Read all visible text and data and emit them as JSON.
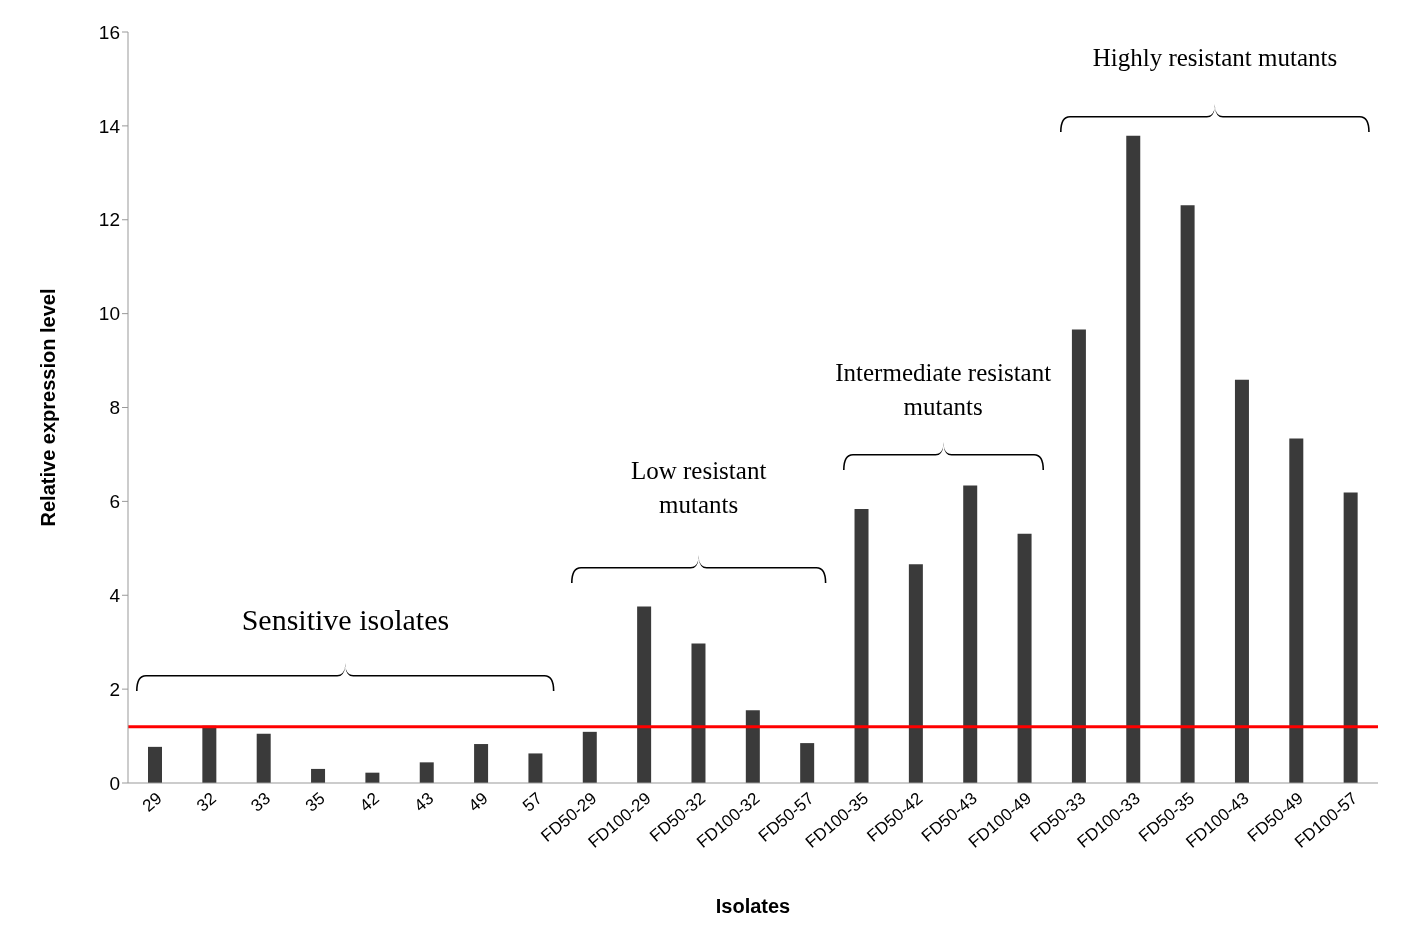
{
  "chart_data": {
    "type": "bar",
    "xlabel": "Isolates",
    "ylabel": "Relative expression level",
    "categories": [
      "29",
      "32",
      "33",
      "35",
      "42",
      "43",
      "49",
      "57",
      "FD50-29",
      "FD100-29",
      "FD50-32",
      "FD100-32",
      "FD50-57",
      "FD100-35",
      "FD50-42",
      "FD50-43",
      "FD100-49",
      "FD50-33",
      "FD100-33",
      "FD50-35",
      "FD100-43",
      "FD50-49",
      "FD100-57"
    ],
    "values": [
      0.77,
      1.22,
      1.05,
      0.3,
      0.22,
      0.44,
      0.83,
      0.63,
      1.09,
      3.76,
      2.97,
      1.55,
      0.85,
      5.84,
      4.66,
      6.34,
      5.31,
      9.66,
      13.79,
      12.31,
      8.59,
      7.34,
      6.19
    ],
    "color": "#3a3a3a",
    "ylim": [
      0,
      16
    ],
    "yticks": [
      0,
      2,
      4,
      6,
      8,
      10,
      12,
      14,
      16
    ],
    "grid": false,
    "legend": false,
    "ref_lines": [
      {
        "axis": "y",
        "value": 1.2,
        "color": "#ff0000"
      }
    ],
    "annotations": [
      "Sensitive isolates",
      "Low resistant mutants",
      "Intermediate resistant mutants",
      "Highly resistant mutants"
    ]
  }
}
